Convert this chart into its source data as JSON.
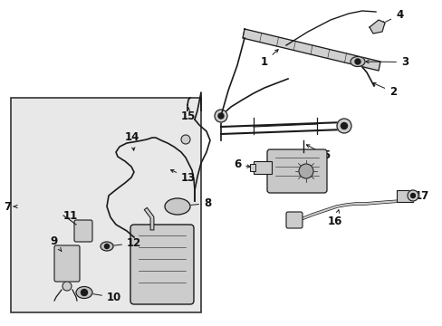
{
  "bg_color": "#ffffff",
  "box_bg": "#e8e8e8",
  "lc": "#1a1a1a",
  "fs": 8.5,
  "fig_w": 4.89,
  "fig_h": 3.6,
  "dpi": 100
}
